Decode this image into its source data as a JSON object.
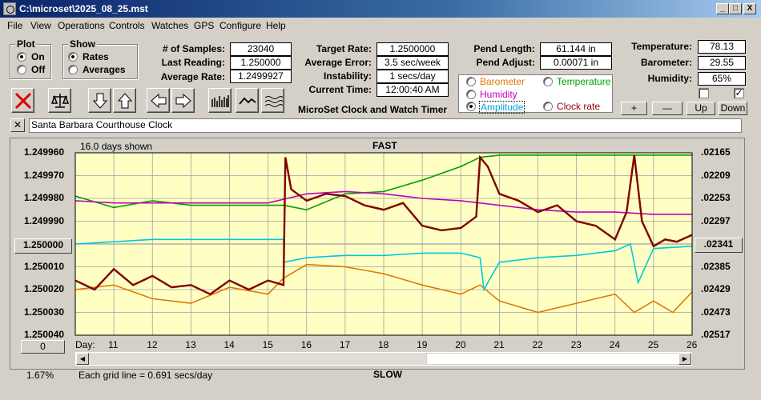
{
  "window": {
    "title": "C:\\microset\\2025_08_25.mst",
    "min_glyph": "_",
    "max_glyph": "□",
    "close_glyph": "X"
  },
  "menu": [
    "File",
    "View",
    "Operations",
    "Controls",
    "Watches",
    "GPS",
    "Configure",
    "Help"
  ],
  "plot_group": {
    "label": "Plot",
    "options": [
      "On",
      "Off"
    ],
    "selected": "On"
  },
  "show_group": {
    "label": "Show",
    "options": [
      "Rates",
      "Averages"
    ],
    "selected": "Rates"
  },
  "stats": {
    "samples_label": "# of Samples:",
    "samples_value": "23040",
    "last_label": "Last Reading:",
    "last_value": "1.250000",
    "avg_label": "Average Rate:",
    "avg_value": "1.2499927",
    "target_label": "Target Rate:",
    "target_value": "1.2500000",
    "err_label": "Average Error:",
    "err_value": "3.5 sec/week",
    "inst_label": "Instability:",
    "inst_value": "1 secs/day",
    "time_label": "Current Time:",
    "time_value": "12:00:40 AM",
    "pend_len_label": "Pend Length:",
    "pend_len_value": "61.144 in",
    "pend_adj_label": "Pend Adjust:",
    "pend_adj_value": "0.00071 in",
    "temp_label": "Temperature:",
    "temp_value": "78.13",
    "baro_label": "Barometer:",
    "baro_value": "29.55",
    "hum_label": "Humidity:",
    "hum_value": "65%"
  },
  "app_label": "MicroSet Clock and Watch Timer",
  "sensor_options": [
    {
      "label": "Barometer",
      "color": "#e07800",
      "selected": false
    },
    {
      "label": "Temperature",
      "color": "#00a000",
      "selected": false
    },
    {
      "label": "Humidity",
      "color": "#c000c0",
      "selected": false
    },
    {
      "label": "Amplitude",
      "color": "#00a0e0",
      "selected": true
    },
    {
      "label": "Clock rate",
      "color": "#a00000",
      "selected": false
    }
  ],
  "checkbox2_mark": "✓",
  "adjust_buttons": [
    "+",
    "—",
    "Up",
    "Down"
  ],
  "clock_name": "Santa Barbara Courthouse Clock",
  "clear_glyph": "✕",
  "chart_header": {
    "days_shown": "16.0 days shown",
    "fast_label": "FAST",
    "slow_label": "SLOW"
  },
  "chart_footer": {
    "zoom": "1.67%",
    "grid_note": "Each grid line = 0.691 secs/day",
    "left_button": "0",
    "right_button": ".02341",
    "center_button": "1.250000"
  },
  "chart_data": {
    "type": "line",
    "xlabel": "Day:",
    "x_ticks": [
      11,
      12,
      13,
      14,
      15,
      16,
      17,
      18,
      19,
      20,
      21,
      22,
      23,
      24,
      25,
      26
    ],
    "xlim": [
      10.0,
      26.0
    ],
    "y_left_ticks": [
      "1.249960",
      "1.249970",
      "1.249980",
      "1.249990",
      "1.250000",
      "1.250010",
      "1.250020",
      "1.250030",
      "1.250040"
    ],
    "y_right_ticks": [
      ".02165",
      ".02209",
      ".02253",
      ".02297",
      ".02341",
      ".02385",
      ".02429",
      ".02473",
      ".02517"
    ],
    "ylim_left": [
      1.24996,
      1.25004
    ],
    "grid": true,
    "series": [
      {
        "name": "Barometer",
        "color": "#e07800",
        "x": [
          10.0,
          11.0,
          12.0,
          13.0,
          14.0,
          15.0,
          15.4,
          16.0,
          17.0,
          18.0,
          19.0,
          20.0,
          20.5,
          21.0,
          22.0,
          23.0,
          24.0,
          24.5,
          25.0,
          25.5,
          26.0
        ],
        "y": [
          1.25002,
          1.250018,
          1.250024,
          1.250026,
          1.250019,
          1.250022,
          1.250015,
          1.250009,
          1.25001,
          1.250013,
          1.250018,
          1.250022,
          1.250018,
          1.250025,
          1.25003,
          1.250026,
          1.250022,
          1.25003,
          1.250025,
          1.25003,
          1.250021
        ]
      },
      {
        "name": "Temperature",
        "color": "#00a000",
        "x": [
          10.0,
          11.0,
          12.0,
          13.0,
          14.0,
          15.0,
          15.4,
          16.0,
          17.0,
          18.0,
          19.0,
          20.0,
          20.5,
          21.0,
          22.0,
          23.0,
          24.0,
          25.0,
          26.0
        ],
        "y": [
          1.249979,
          1.249984,
          1.249981,
          1.249983,
          1.249983,
          1.249983,
          1.249983,
          1.249985,
          1.249978,
          1.249977,
          1.249972,
          1.249966,
          1.249962,
          1.249961,
          1.249961,
          1.249961,
          1.249961,
          1.249961,
          1.249961
        ]
      },
      {
        "name": "Humidity",
        "color": "#c000c0",
        "x": [
          10.0,
          11.0,
          12.0,
          13.0,
          14.0,
          15.0,
          16.0,
          17.0,
          18.0,
          19.0,
          20.0,
          21.0,
          22.0,
          23.0,
          24.0,
          25.0,
          26.0
        ],
        "y": [
          1.249981,
          1.249982,
          1.249982,
          1.249982,
          1.249982,
          1.249982,
          1.249978,
          1.249977,
          1.249978,
          1.24998,
          1.249981,
          1.249983,
          1.249985,
          1.249986,
          1.249986,
          1.249987,
          1.249987
        ]
      },
      {
        "name": "Amplitude",
        "color": "#00c8e0",
        "x": [
          10.0,
          11.0,
          12.0,
          13.0,
          14.0,
          15.0,
          15.4,
          15.41,
          16.0,
          17.0,
          18.0,
          19.0,
          20.0,
          20.5,
          20.6,
          21.0,
          22.0,
          23.0,
          24.0,
          24.4,
          24.6,
          25.0,
          26.0
        ],
        "y": [
          1.25,
          1.249999,
          1.249998,
          1.249998,
          1.249998,
          1.249998,
          1.249998,
          1.250008,
          1.250006,
          1.250005,
          1.250005,
          1.250004,
          1.250004,
          1.250006,
          1.25002,
          1.250008,
          1.250006,
          1.250005,
          1.250003,
          1.25,
          1.250017,
          1.250002,
          1.250001
        ]
      },
      {
        "name": "Clock rate",
        "color": "#800000",
        "x": [
          10.0,
          10.5,
          11.0,
          11.5,
          12.0,
          12.5,
          13.0,
          13.5,
          14.0,
          14.5,
          15.0,
          15.4,
          15.45,
          15.6,
          16.0,
          16.5,
          17.0,
          17.5,
          18.0,
          18.5,
          19.0,
          19.5,
          20.0,
          20.4,
          20.5,
          20.7,
          21.0,
          21.5,
          22.0,
          22.5,
          23.0,
          23.5,
          24.0,
          24.3,
          24.5,
          24.7,
          25.0,
          25.3,
          25.6,
          26.0
        ],
        "y": [
          1.250016,
          1.25002,
          1.250011,
          1.250018,
          1.250014,
          1.250019,
          1.250018,
          1.250022,
          1.250016,
          1.25002,
          1.250016,
          1.250018,
          1.249962,
          1.249976,
          1.249981,
          1.249978,
          1.249979,
          1.249983,
          1.249985,
          1.249982,
          1.249992,
          1.249994,
          1.249993,
          1.249988,
          1.249962,
          1.249966,
          1.249978,
          1.249981,
          1.249986,
          1.249983,
          1.24999,
          1.249992,
          1.249998,
          1.249986,
          1.249961,
          1.24999,
          1.250001,
          1.249998,
          1.249999,
          1.249996
        ]
      }
    ]
  }
}
